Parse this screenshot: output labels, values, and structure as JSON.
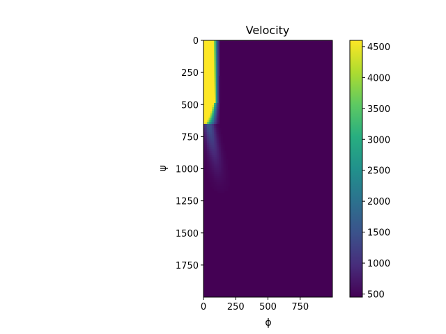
{
  "chart_data": {
    "type": "heatmap",
    "title": "Velocity",
    "xlabel": "ϕ",
    "ylabel": "ψ",
    "xlim": [
      0,
      1000
    ],
    "ylim": [
      2000,
      0
    ],
    "y_axis_inverted": true,
    "x_ticks": [
      0,
      250,
      500,
      750
    ],
    "y_ticks": [
      0,
      250,
      500,
      750,
      1000,
      1250,
      1500,
      1750
    ],
    "colorbar": {
      "colormap": "viridis",
      "range": [
        450,
        4600
      ],
      "ticks": [
        500,
        1000,
        1500,
        2000,
        2500,
        3000,
        3500,
        4000,
        4500
      ]
    },
    "field": {
      "high_value": 4600,
      "low_value": 450,
      "high_region_depth": 650,
      "high_region_width": 80,
      "transition_end": 130,
      "tail_end_depth": 1250
    }
  },
  "colors": {
    "background": "#ffffff",
    "low": "#440154",
    "high": "#fde725"
  }
}
